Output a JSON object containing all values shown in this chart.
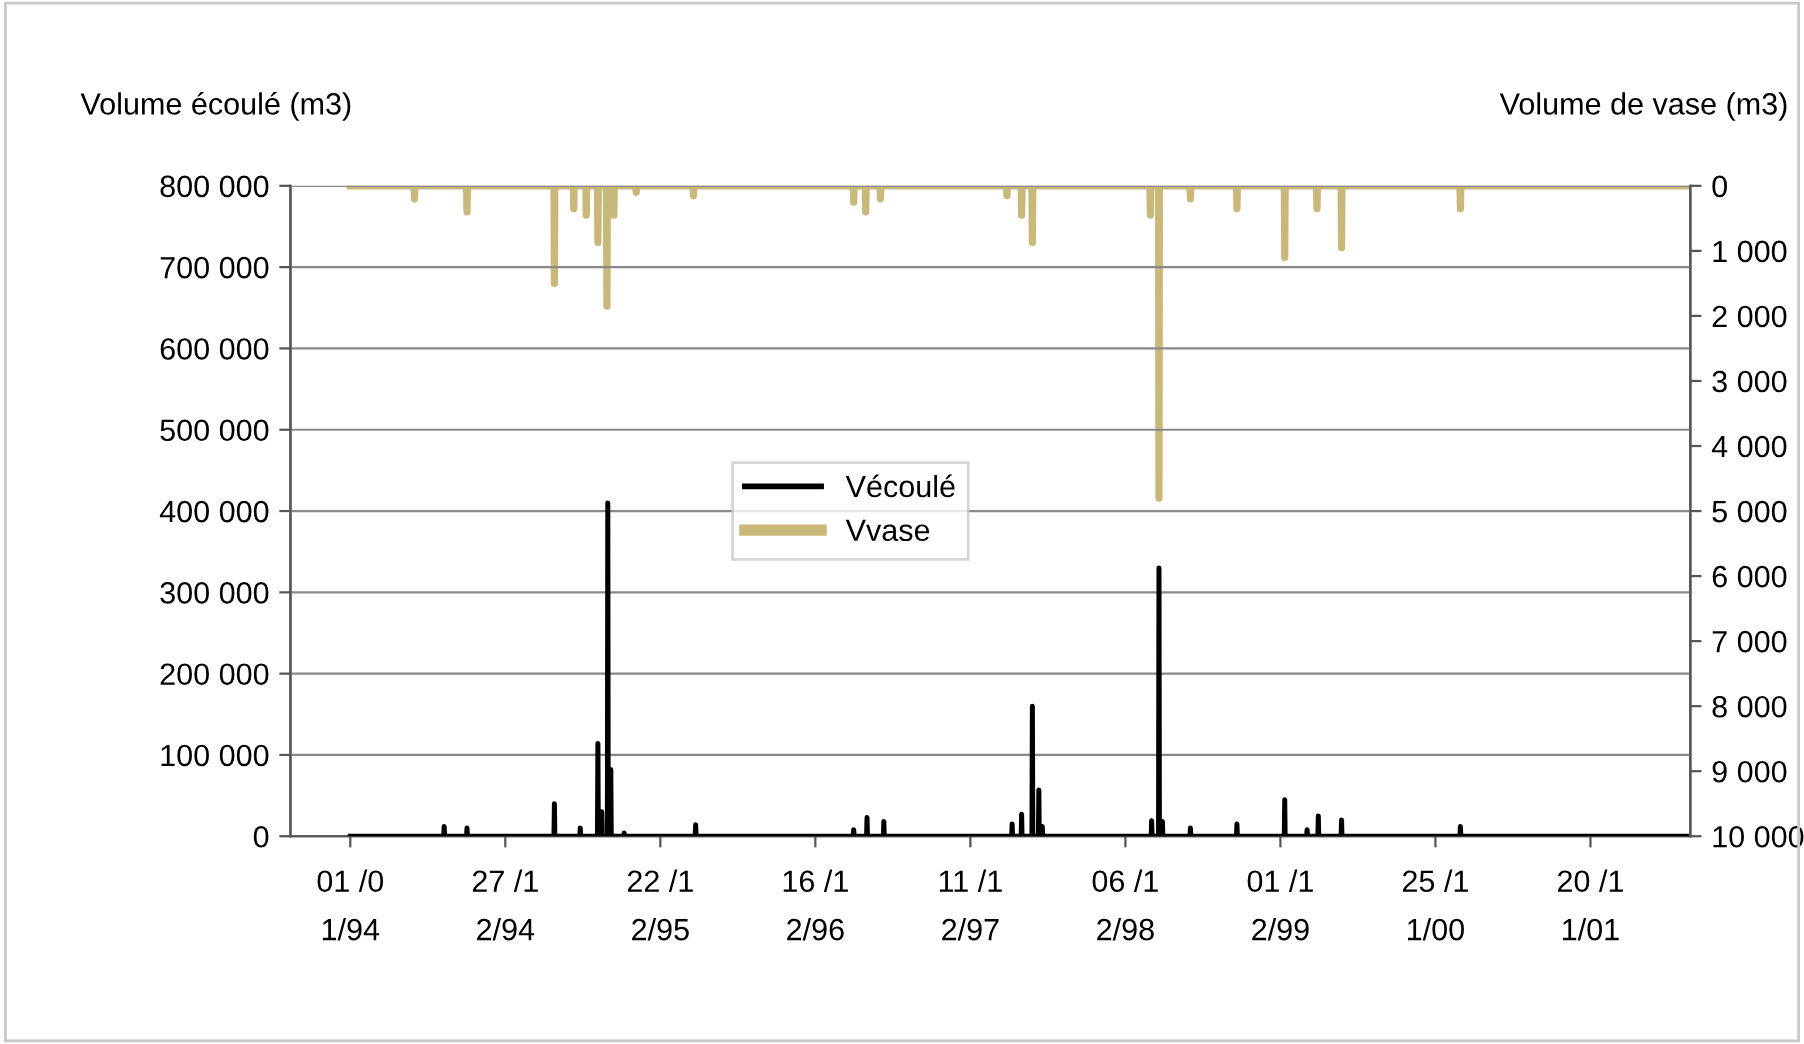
{
  "chart_data": {
    "type": "line",
    "ylabel": "Volume écoulé (m3)",
    "y2label": "Volume de vase (m3)",
    "xlim": [
      "1993-08-15",
      "2002-07-10"
    ],
    "xticks": [
      {
        "value": "1994-01-01",
        "label": "01 /0\n1/94"
      },
      {
        "value": "1994-12-27",
        "label": "27 /1\n2/94"
      },
      {
        "value": "1995-12-22",
        "label": "22 /1\n2/95"
      },
      {
        "value": "1996-12-16",
        "label": "16 /1\n2/96"
      },
      {
        "value": "1997-12-11",
        "label": "11 /1\n2/97"
      },
      {
        "value": "1998-12-06",
        "label": "06 /1\n2/98"
      },
      {
        "value": "1999-12-01",
        "label": "01 /1\n2/99"
      },
      {
        "value": "2000-11-25",
        "label": "25 /1\n1/00"
      },
      {
        "value": "2001-11-20",
        "label": "20 /1\n1/01"
      }
    ],
    "ylim": [
      0,
      800000
    ],
    "yticks": [
      0,
      {
        "value": 100000,
        "label": "100 000"
      },
      {
        "value": 200000,
        "label": "200 000"
      },
      {
        "value": 300000,
        "label": "300 000"
      },
      {
        "value": 400000,
        "label": "400 000"
      },
      {
        "value": 500000,
        "label": "500 000"
      },
      {
        "value": 600000,
        "label": "600 000"
      },
      {
        "value": 700000,
        "label": "700 000"
      },
      {
        "value": 800000,
        "label": "800 000"
      }
    ],
    "y2lim": [
      10000,
      0
    ],
    "y2ticks": [
      0,
      {
        "value": 1000,
        "label": "1 000"
      },
      {
        "value": 2000,
        "label": "2 000"
      },
      {
        "value": 3000,
        "label": "3 000"
      },
      {
        "value": 4000,
        "label": "4 000"
      },
      {
        "value": 5000,
        "label": "5 000"
      },
      {
        "value": 6000,
        "label": "6 000"
      },
      {
        "value": 7000,
        "label": "7 000"
      },
      {
        "value": 8000,
        "label": "8 000"
      },
      {
        "value": 9000,
        "label": "9 000"
      },
      {
        "value": 10000,
        "label": "10 000"
      }
    ],
    "grid": "y",
    "legend": "center",
    "line_style": "solid",
    "series": [
      {
        "name": "Vécoulé",
        "color": "#000000",
        "x": [
          "1994-01-01",
          "1994-08-06",
          "1994-08-07",
          "1994-08-08",
          "1994-09-28",
          "1994-09-29",
          "1994-09-30",
          "1995-04-19",
          "1995-04-20",
          "1995-04-21",
          "1995-06-18",
          "1995-06-19",
          "1995-06-20",
          "1995-07-29",
          "1995-07-30",
          "1995-07-31",
          "1995-08-07",
          "1995-08-08",
          "1995-08-09",
          "1995-08-21",
          "1995-08-22",
          "1995-08-23",
          "1995-08-28",
          "1995-08-29",
          "1995-08-30",
          "1995-09-28",
          "1995-09-29",
          "1995-09-30",
          "1996-03-12",
          "1996-03-13",
          "1996-03-14",
          "1997-03-14",
          "1997-03-15",
          "1997-03-16",
          "1997-04-14",
          "1997-04-15",
          "1997-04-16",
          "1997-05-23",
          "1997-05-24",
          "1997-05-25",
          "1998-03-17",
          "1998-03-18",
          "1998-03-19",
          "1998-04-08",
          "1998-04-09",
          "1998-04-10",
          "1998-05-03",
          "1998-05-04",
          "1998-05-05",
          "1998-05-18",
          "1998-05-19",
          "1998-05-20",
          "1998-05-26",
          "1998-05-27",
          "1998-05-28",
          "1999-02-04",
          "1999-02-05",
          "1999-02-06",
          "1999-02-21",
          "1999-02-22",
          "1999-02-23",
          "1999-03-01",
          "1999-03-02",
          "1999-03-03",
          "1999-05-05",
          "1999-05-06",
          "1999-05-07",
          "1999-08-21",
          "1999-08-22",
          "1999-08-23",
          "1999-12-10",
          "1999-12-11",
          "1999-12-12",
          "2000-01-31",
          "2000-02-01",
          "2000-02-02",
          "2000-02-26",
          "2000-02-27",
          "2000-02-28",
          "2000-04-20",
          "2000-04-21",
          "2000-04-22",
          "2001-01-21",
          "2001-01-22",
          "2001-01-23",
          "2002-07-01"
        ],
        "values": [
          0,
          0,
          12000,
          0,
          0,
          10000,
          0,
          0,
          40000,
          0,
          0,
          10000,
          0,
          0,
          114000,
          0,
          0,
          30000,
          0,
          0,
          410000,
          0,
          0,
          82000,
          0,
          0,
          4000,
          0,
          0,
          14000,
          0,
          0,
          8000,
          0,
          0,
          23000,
          0,
          0,
          18000,
          0,
          0,
          15000,
          0,
          0,
          27000,
          0,
          0,
          160000,
          0,
          0,
          57000,
          0,
          0,
          12000,
          0,
          0,
          19000,
          0,
          0,
          330000,
          0,
          0,
          18000,
          0,
          0,
          10000,
          0,
          0,
          15000,
          0,
          0,
          45000,
          0,
          0,
          8000,
          0,
          0,
          25000,
          0,
          0,
          20000,
          0,
          0,
          12000,
          0,
          0
        ]
      },
      {
        "name": "Vvase",
        "color": "#c8b87a",
        "axis": "y2",
        "x": [
          "1994-01-01",
          "1994-05-29",
          "1994-05-30",
          "1994-05-31",
          "1994-09-28",
          "1994-09-29",
          "1994-09-30",
          "1995-04-19",
          "1995-04-20",
          "1995-04-21",
          "1995-06-03",
          "1995-06-04",
          "1995-06-05",
          "1995-07-02",
          "1995-07-03",
          "1995-07-04",
          "1995-07-29",
          "1995-07-30",
          "1995-07-31",
          "1995-08-19",
          "1995-08-20",
          "1995-08-21",
          "1995-09-04",
          "1995-09-05",
          "1995-09-06",
          "1995-10-26",
          "1995-10-27",
          "1995-10-28",
          "1996-03-07",
          "1996-03-08",
          "1996-03-09",
          "1997-03-14",
          "1997-03-15",
          "1997-03-16",
          "1997-04-11",
          "1997-04-12",
          "1997-04-13",
          "1997-05-15",
          "1997-05-16",
          "1997-05-17",
          "1998-03-05",
          "1998-03-06",
          "1998-03-07",
          "1998-04-08",
          "1998-04-09",
          "1998-04-10",
          "1998-05-03",
          "1998-05-04",
          "1998-05-05",
          "1999-02-01",
          "1999-02-02",
          "1999-02-03",
          "1999-02-21",
          "1999-02-22",
          "1999-02-23",
          "1999-05-05",
          "1999-05-06",
          "1999-05-07",
          "1999-08-21",
          "1999-08-22",
          "1999-08-23",
          "1999-12-10",
          "1999-12-11",
          "1999-12-12",
          "2000-02-23",
          "2000-02-24",
          "2000-02-25",
          "2000-04-20",
          "2000-04-21",
          "2000-04-22",
          "2001-01-21",
          "2001-01-22",
          "2001-01-23",
          "2002-07-01"
        ],
        "values": [
          0,
          0,
          200,
          0,
          0,
          400,
          0,
          0,
          1500,
          0,
          0,
          350,
          0,
          0,
          450,
          0,
          0,
          870,
          0,
          0,
          1850,
          0,
          0,
          450,
          0,
          0,
          100,
          0,
          0,
          150,
          0,
          0,
          250,
          0,
          0,
          400,
          0,
          0,
          200,
          0,
          0,
          150,
          0,
          0,
          450,
          0,
          0,
          870,
          0,
          0,
          450,
          0,
          0,
          4800,
          0,
          0,
          200,
          0,
          0,
          350,
          0,
          0,
          1100,
          0,
          0,
          350,
          0,
          0,
          950,
          0,
          0,
          350,
          0,
          0
        ]
      }
    ]
  }
}
